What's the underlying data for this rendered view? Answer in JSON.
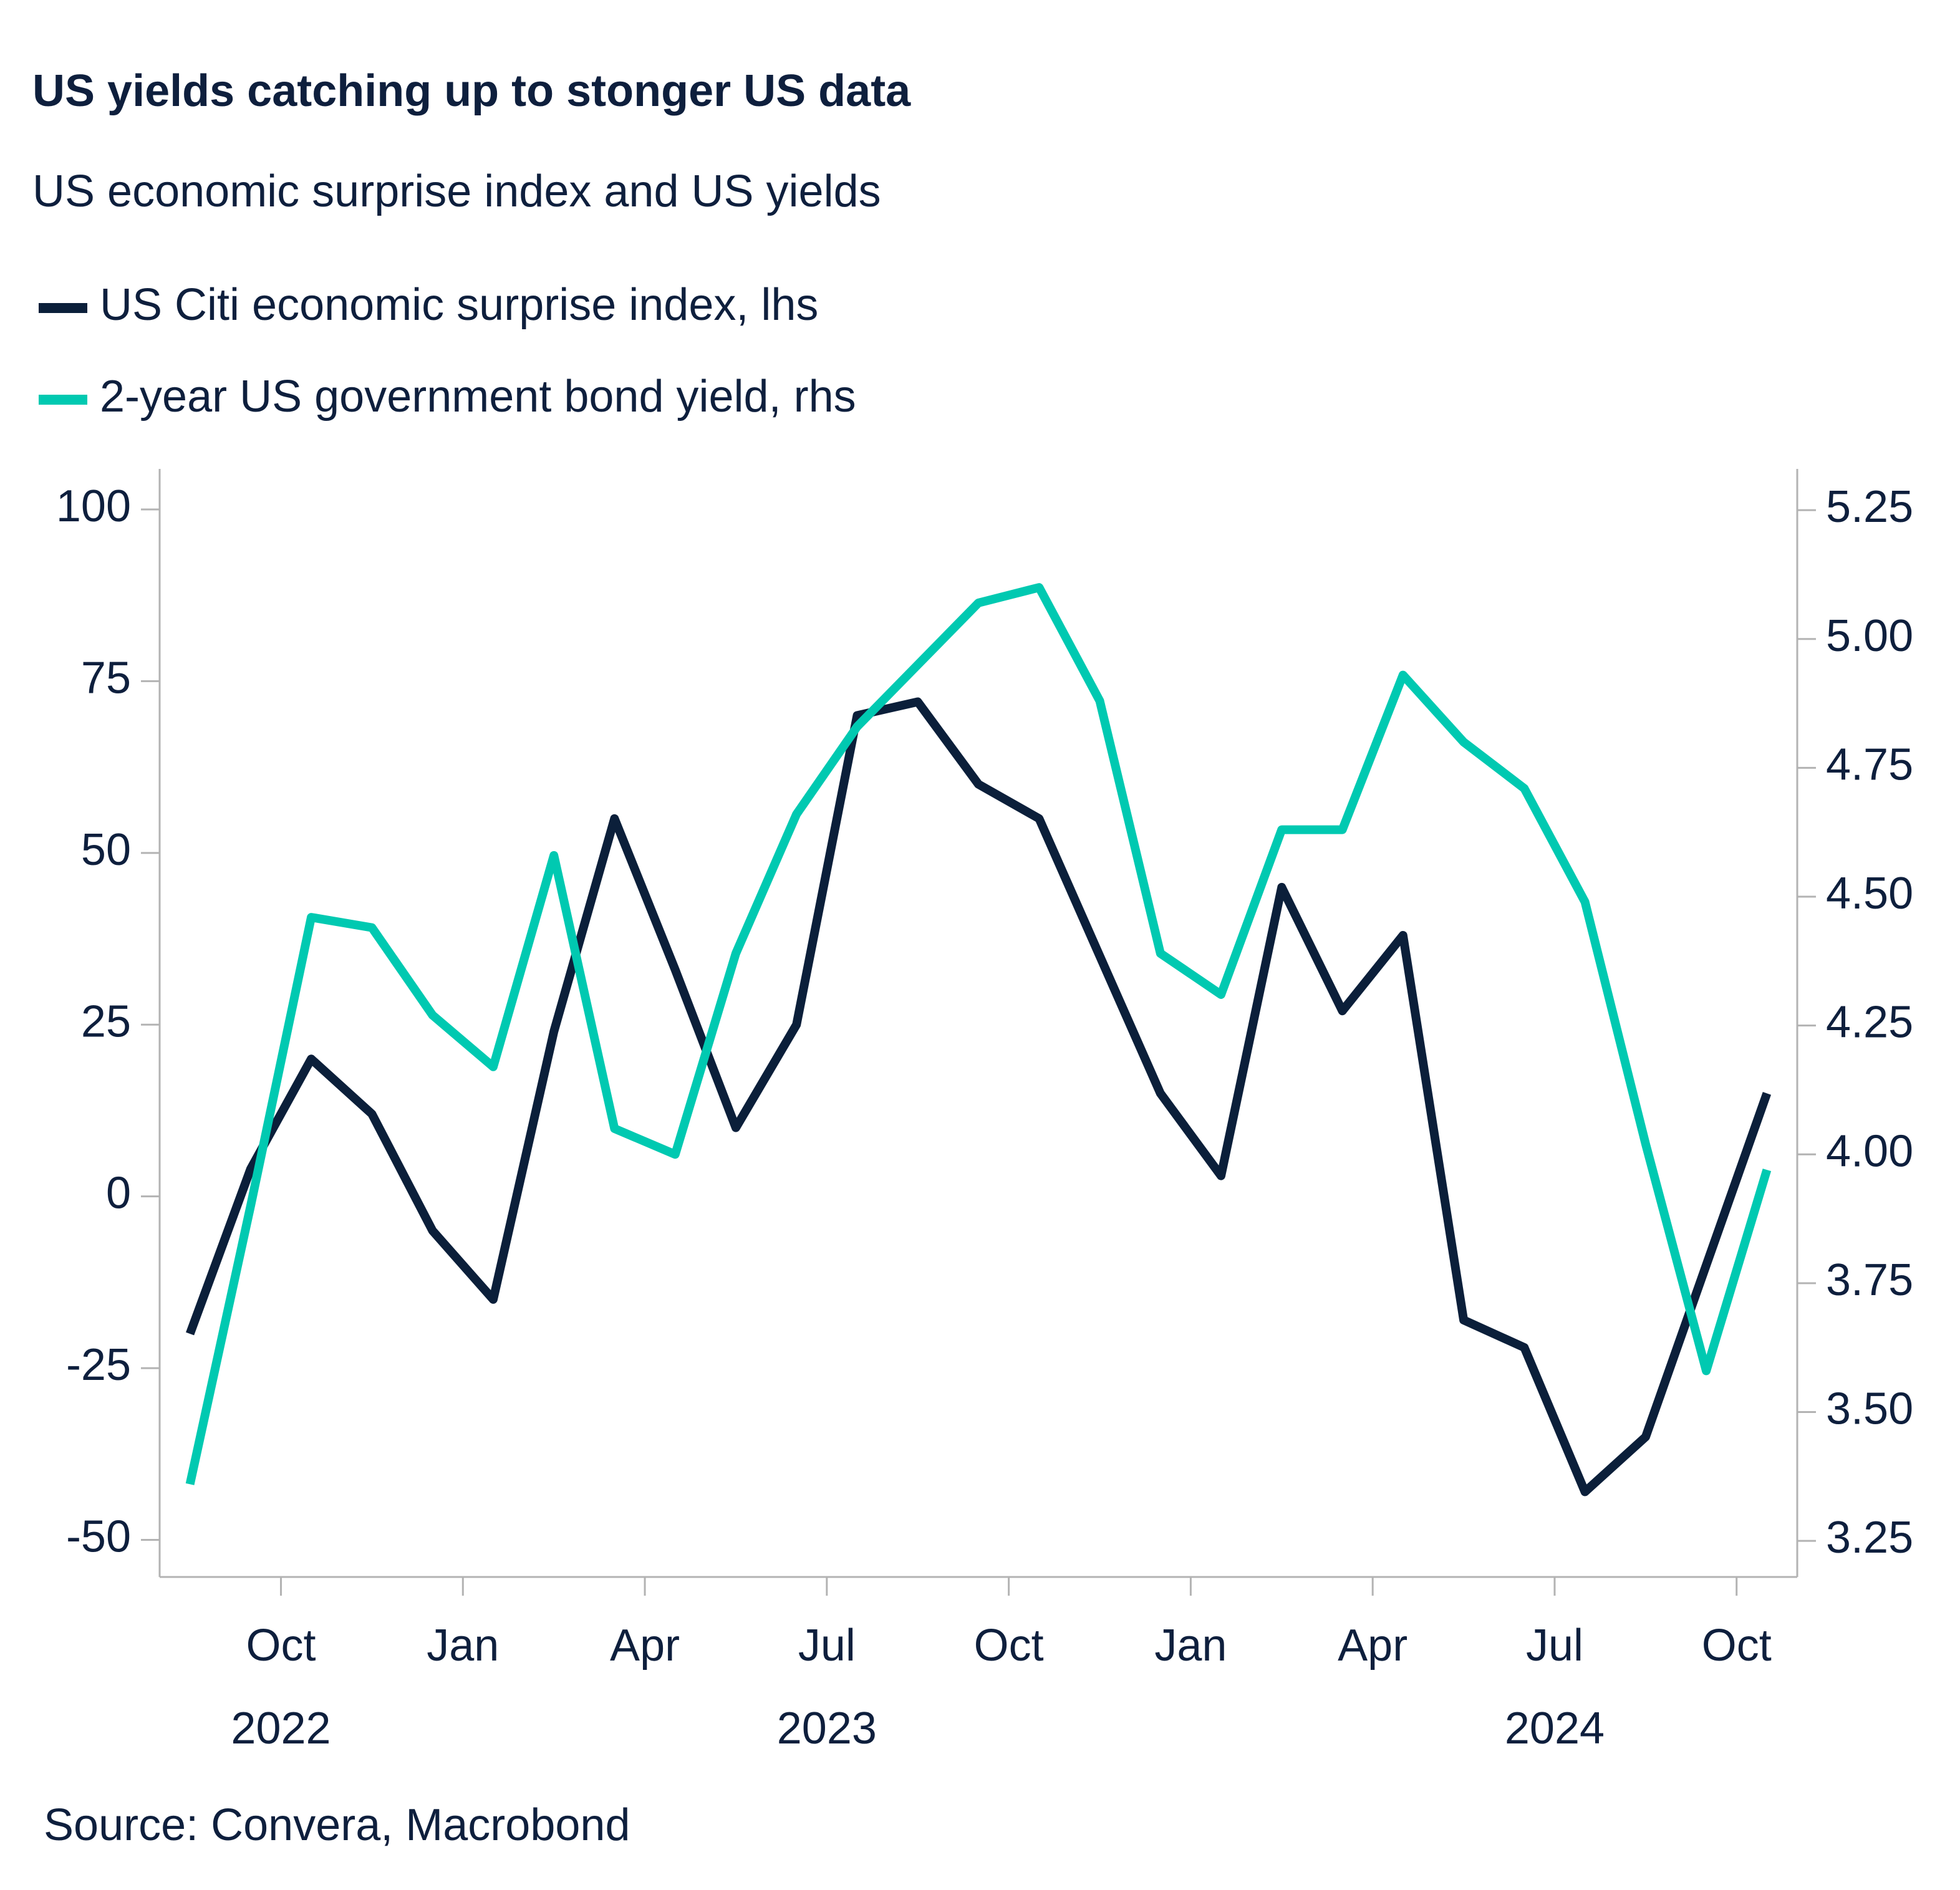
{
  "chart_data": {
    "type": "line",
    "title": "US yields catching up to stonger US data",
    "subtitle": "US economic surprise index and US yields",
    "source": "Source: Convera, Macrobond",
    "x": [
      "2022-08",
      "2022-09",
      "2022-10",
      "2022-11",
      "2022-12",
      "2023-01",
      "2023-02",
      "2023-03",
      "2023-04",
      "2023-05",
      "2023-06",
      "2023-07",
      "2023-08",
      "2023-09",
      "2023-10",
      "2023-11",
      "2023-12",
      "2024-01",
      "2024-02",
      "2024-03",
      "2024-04",
      "2024-05",
      "2024-06",
      "2024-07",
      "2024-08",
      "2024-09",
      "2024-10"
    ],
    "xlim": [
      "2022-08",
      "2024-11"
    ],
    "xticks": [
      {
        "value": "2022-10",
        "label": "Oct"
      },
      {
        "value": "2023-01",
        "label": "Jan"
      },
      {
        "value": "2023-04",
        "label": "Apr"
      },
      {
        "value": "2023-07",
        "label": "Jul"
      },
      {
        "value": "2023-10",
        "label": "Oct"
      },
      {
        "value": "2024-01",
        "label": "Jan"
      },
      {
        "value": "2024-04",
        "label": "Apr"
      },
      {
        "value": "2024-07",
        "label": "Jul"
      },
      {
        "value": "2024-10",
        "label": "Oct"
      }
    ],
    "year_labels": [
      {
        "value": "2022-10",
        "label": "2022"
      },
      {
        "value": "2023-07",
        "label": "2023"
      },
      {
        "value": "2024-07",
        "label": "2024"
      }
    ],
    "ylim": [
      -55.4,
      105.9
    ],
    "yticks": [
      -50,
      -25,
      0,
      25,
      50,
      75,
      100
    ],
    "y2lim": [
      3.18,
      5.33
    ],
    "y2ticks": [
      3.25,
      {
        "value": 3.5,
        "label": "3.50"
      },
      3.75,
      {
        "value": 4,
        "label": "4.00"
      },
      4.25,
      {
        "value": 4.5,
        "label": "4.50"
      },
      4.75,
      {
        "value": 5,
        "label": "5.00"
      },
      5.25
    ],
    "grid": false,
    "series": [
      {
        "name": "US Citi economic surprise index, lhs",
        "color": "#0b1f3a",
        "values": [
          -20,
          4,
          20,
          12,
          -5,
          -15,
          24,
          55,
          33,
          10,
          25,
          70,
          72,
          60,
          55,
          35,
          15,
          3,
          45,
          27,
          38,
          -18,
          -22,
          -43,
          -35,
          -10,
          15
        ]
      },
      {
        "name": "2-year US government bond yield, rhs",
        "color": "#00c9b1",
        "axis": "y2",
        "values": [
          3.36,
          3.9,
          4.46,
          4.44,
          4.27,
          4.17,
          4.58,
          4.05,
          4.0,
          4.39,
          4.66,
          4.83,
          4.95,
          5.07,
          5.1,
          4.88,
          4.39,
          4.31,
          4.63,
          4.63,
          4.93,
          4.8,
          4.71,
          4.49,
          4.02,
          3.58,
          3.97
        ]
      }
    ]
  }
}
